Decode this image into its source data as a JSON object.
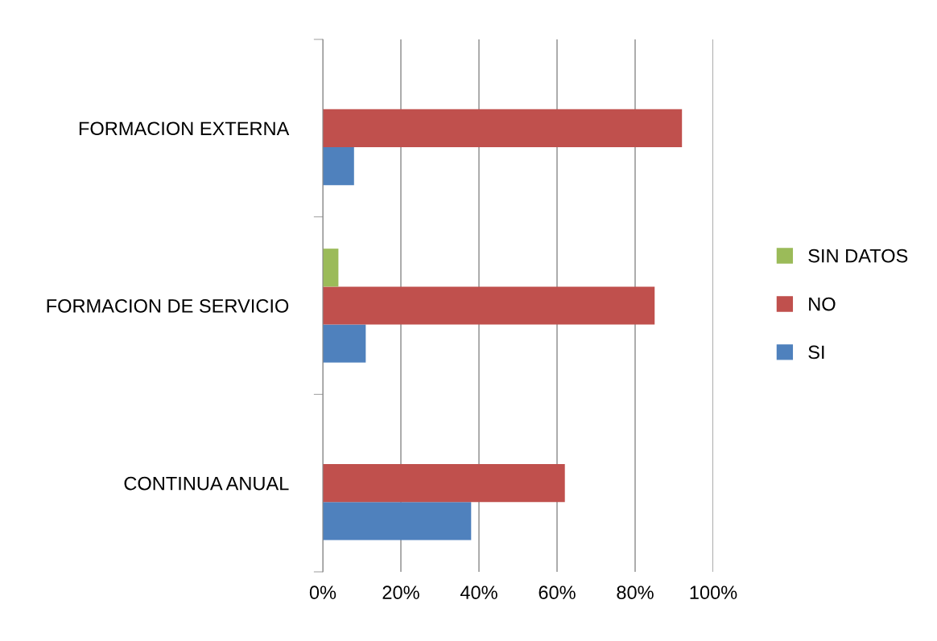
{
  "chart_data": {
    "type": "bar",
    "orientation": "horizontal",
    "categories": [
      "FORMACION EXTERNA",
      "FORMACION DE SERVICIO",
      "CONTINUA ANUAL"
    ],
    "series": [
      {
        "name": "SI",
        "color": "#4f81bd",
        "values": [
          8,
          11,
          38
        ]
      },
      {
        "name": "NO",
        "color": "#c0504d",
        "values": [
          92,
          85,
          62
        ]
      },
      {
        "name": "SIN DATOS",
        "color": "#9bbb59",
        "values": [
          null,
          4,
          null
        ]
      }
    ],
    "xlim": [
      0,
      100
    ],
    "xticks": [
      {
        "value": 0,
        "label": "0%"
      },
      {
        "value": 20,
        "label": "20%"
      },
      {
        "value": 40,
        "label": "40%"
      },
      {
        "value": 60,
        "label": "60%"
      },
      {
        "value": 80,
        "label": "80%"
      },
      {
        "value": 100,
        "label": "100%"
      }
    ],
    "grid": "x",
    "legend": "right"
  }
}
